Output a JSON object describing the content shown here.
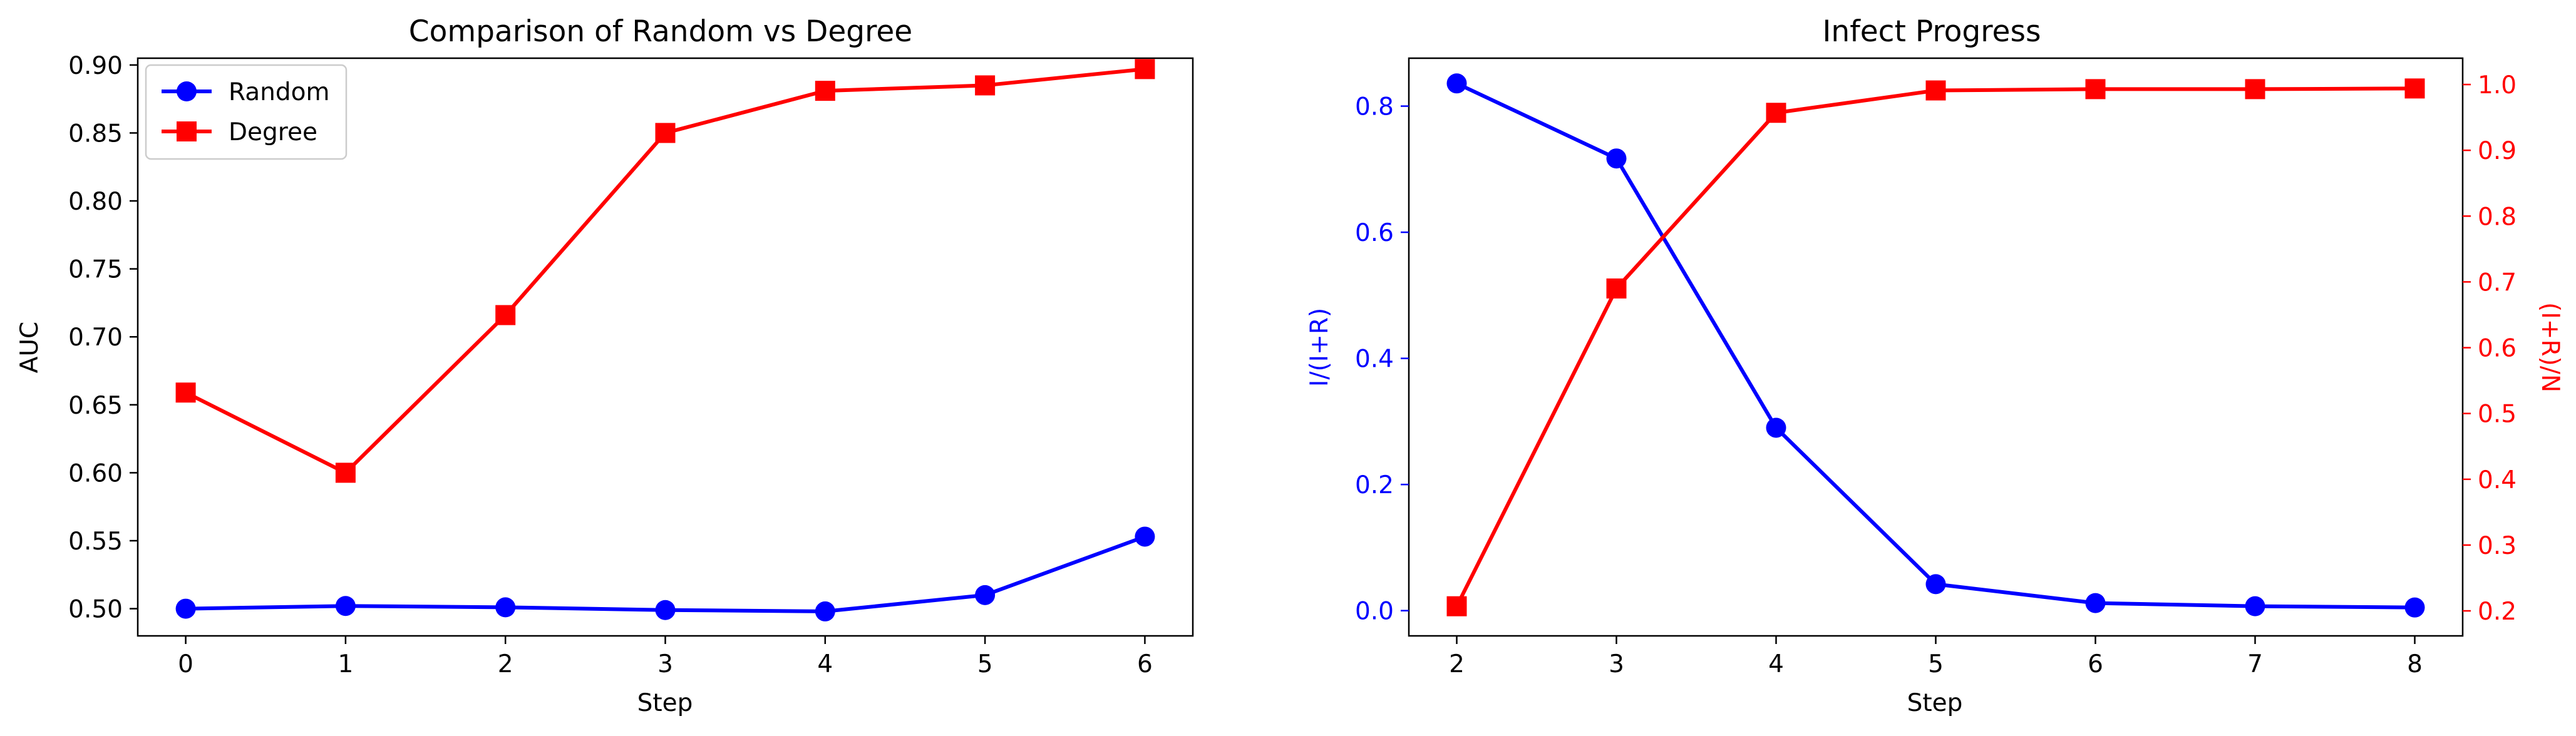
{
  "chart_data": [
    {
      "type": "line",
      "title": "Comparison of Random vs Degree",
      "xlabel": "Step",
      "ylabel": "AUC",
      "x": [
        0,
        1,
        2,
        3,
        4,
        5,
        6
      ],
      "xlim": [
        -0.3,
        6.3
      ],
      "ylim": [
        0.48,
        0.905
      ],
      "xticks": [
        0,
        1,
        2,
        3,
        4,
        5,
        6
      ],
      "yticks": [
        "0.50",
        "0.55",
        "0.60",
        "0.65",
        "0.70",
        "0.75",
        "0.80",
        "0.85",
        "0.90"
      ],
      "grid": false,
      "legend": "top-left",
      "series": [
        {
          "name": "Random",
          "color": "#0000ff",
          "marker": "circle",
          "values": [
            0.5,
            0.502,
            0.501,
            0.499,
            0.498,
            0.51,
            0.553
          ]
        },
        {
          "name": "Degree",
          "color": "#ff0000",
          "marker": "square",
          "values": [
            0.659,
            0.6,
            0.716,
            0.85,
            0.881,
            0.885,
            0.897
          ]
        }
      ]
    },
    {
      "type": "line",
      "title": "Infect Progress",
      "xlabel": "Step",
      "ylabel": "I/(I+R)",
      "y2label": "(I+R)/N",
      "x": [
        2,
        3,
        4,
        5,
        6,
        7,
        8
      ],
      "xlim": [
        1.7,
        8.3
      ],
      "ylim": [
        -0.04,
        0.876
      ],
      "y2lim": [
        0.162,
        1.04
      ],
      "xticks": [
        2,
        3,
        4,
        5,
        6,
        7,
        8
      ],
      "yticks": [
        "0.0",
        "0.2",
        "0.4",
        "0.6",
        "0.8"
      ],
      "y2ticks": [
        "0.2",
        "0.3",
        "0.4",
        "0.5",
        "0.6",
        "0.7",
        "0.8",
        "0.9",
        "1.0"
      ],
      "grid": false,
      "series": [
        {
          "axis": "left",
          "color": "#0000ff",
          "marker": "circle",
          "values": [
            0.836,
            0.717,
            0.29,
            0.042,
            0.012,
            0.007,
            0.005
          ]
        },
        {
          "axis": "right",
          "color": "#ff0000",
          "marker": "square",
          "values": [
            0.207,
            0.69,
            0.957,
            0.991,
            0.993,
            0.993,
            0.994
          ]
        }
      ]
    }
  ]
}
